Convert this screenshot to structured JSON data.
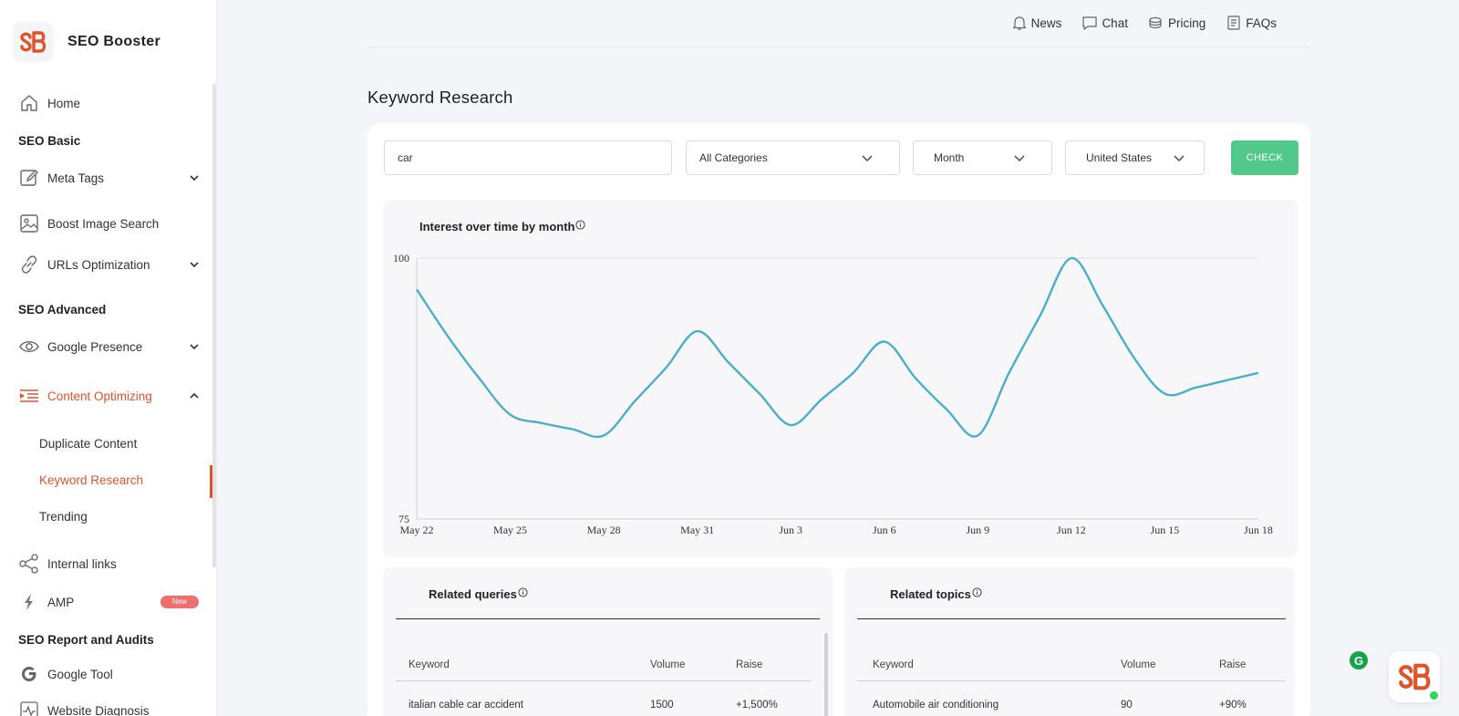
{
  "app": {
    "name": "SEO Booster"
  },
  "sidebar": {
    "home": "Home",
    "sections": [
      "SEO Basic",
      "SEO Advanced",
      "SEO Report and Audits"
    ],
    "meta_tags": "Meta Tags",
    "boost_image": "Boost Image Search",
    "urls": "URLs Optimization",
    "google_presence": "Google Presence",
    "content_optimizing": "Content Optimizing",
    "sub": [
      "Duplicate Content",
      "Keyword Research",
      "Trending"
    ],
    "internal_links": "Internal links",
    "amp": "AMP",
    "amp_badge": "New",
    "google_tool": "Google Tool",
    "website_diagnosis": "Website Diagnosis",
    "accent": "#e0532a"
  },
  "topnav": {
    "news": "News",
    "chat": "Chat",
    "pricing": "Pricing",
    "faqs": "FAQs"
  },
  "page": {
    "title": "Keyword Research"
  },
  "form": {
    "keyword_value": "car",
    "category": "All Categories",
    "period": "Month",
    "country": "United States",
    "check": "CHECK",
    "check_color": "#52c88a"
  },
  "chart_data": {
    "type": "line",
    "title": "Interest over time by month",
    "x": [
      "May 22",
      "May 23",
      "May 24",
      "May 25",
      "May 26",
      "May 27",
      "May 28",
      "May 29",
      "May 30",
      "May 31",
      "Jun 1",
      "Jun 2",
      "Jun 3",
      "Jun 4",
      "Jun 5",
      "Jun 6",
      "Jun 7",
      "Jun 8",
      "Jun 9",
      "Jun 10",
      "Jun 11",
      "Jun 12",
      "Jun 13",
      "Jun 14",
      "Jun 15",
      "Jun 16",
      "Jun 17",
      "Jun 18"
    ],
    "x_ticks": [
      "May 22",
      "May 25",
      "May 28",
      "May 31",
      "Jun 3",
      "Jun 6",
      "Jun 9",
      "Jun 12",
      "Jun 15",
      "Jun 18"
    ],
    "series": [
      {
        "values": [
          97,
          92.5,
          88.5,
          85,
          84.2,
          83.6,
          83,
          86.3,
          89.5,
          93,
          90,
          87,
          84,
          86.5,
          89,
          92,
          88.5,
          85.5,
          83,
          89,
          94.5,
          100,
          95.5,
          90.5,
          87,
          87.6,
          88.3,
          89
        ],
        "color": "#4aaecc"
      }
    ],
    "ylim": [
      75,
      100
    ],
    "y_ticks": [
      75,
      100
    ],
    "grid": true,
    "legend": "none"
  },
  "related_queries": {
    "title": "Related queries",
    "headers": [
      "Keyword",
      "Volume",
      "Raise"
    ],
    "rows": [
      [
        "italian cable car accident",
        "1500",
        "+1,500%"
      ]
    ]
  },
  "related_topics": {
    "title": "Related topics",
    "headers": [
      "Keyword",
      "Volume",
      "Raise"
    ],
    "rows": [
      [
        "Automobile air conditioning",
        "90",
        "+90%"
      ]
    ]
  },
  "widgets": {
    "grammarly": "G"
  }
}
